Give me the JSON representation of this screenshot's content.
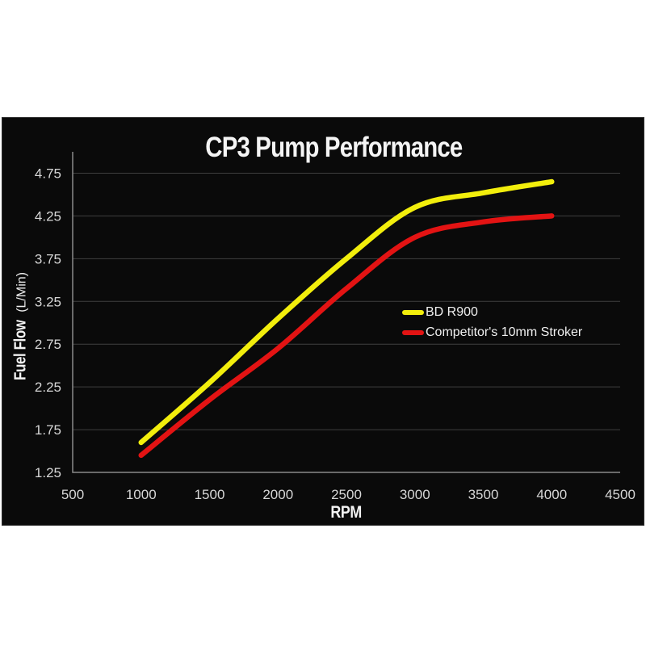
{
  "chart_data": {
    "type": "line",
    "title": "CP3 Pump Performance",
    "xlabel": "RPM",
    "ylabel": "Fuel Flow (L/Min)",
    "ylabel_main": "Fuel Flow",
    "ylabel_unit": "(L/Min)",
    "xlim": [
      500,
      4500
    ],
    "ylim": [
      1.25,
      5.0
    ],
    "x_ticks": [
      500,
      1000,
      1500,
      2000,
      2500,
      3000,
      3500,
      4000,
      4500
    ],
    "y_ticks": [
      1.25,
      1.75,
      2.25,
      2.75,
      3.25,
      3.75,
      4.25,
      4.75
    ],
    "y_tick_decimals": 2,
    "grid": true,
    "legend_position": "center-right",
    "series": [
      {
        "name": "BD R900",
        "color": "#f2ee0c",
        "x": [
          1000,
          1500,
          2000,
          2500,
          3000,
          3500,
          4000
        ],
        "values": [
          1.6,
          2.3,
          3.05,
          3.75,
          4.35,
          4.52,
          4.65
        ]
      },
      {
        "name": "Competitor's 10mm Stroker",
        "color": "#e31313",
        "x": [
          1000,
          1500,
          2000,
          2500,
          3000,
          3500,
          4000
        ],
        "values": [
          1.45,
          2.1,
          2.7,
          3.4,
          4.0,
          4.18,
          4.25
        ]
      }
    ]
  },
  "colors": {
    "page_bg": "#ffffff",
    "panel_bg": "#0a0a0a",
    "grid": "#3f3f3f",
    "axis": "#8a8a8a",
    "tick_text": "#d6d6d6",
    "title_text": "#f4f4f4",
    "legend_text": "#f0f0f0"
  }
}
